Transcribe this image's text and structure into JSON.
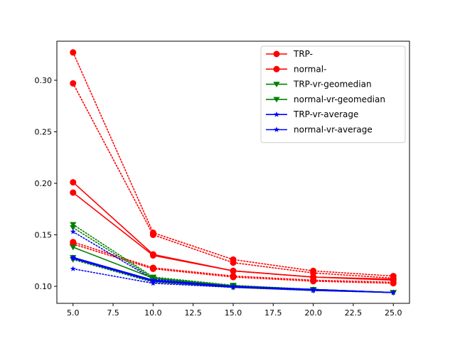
{
  "chart_data": {
    "type": "line",
    "title": "",
    "xlabel": "",
    "ylabel": "",
    "xlim": [
      3.99,
      26.01
    ],
    "ylim": [
      0.0835,
      0.3379
    ],
    "x_ticks": [
      5.0,
      7.5,
      10.0,
      12.5,
      15.0,
      17.5,
      20.0,
      22.5,
      25.0
    ],
    "x_tick_labels": [
      "5.0",
      "7.5",
      "10.0",
      "12.5",
      "15.0",
      "17.5",
      "20.0",
      "22.5",
      "25.0"
    ],
    "y_ticks": [
      0.1,
      0.15,
      0.2,
      0.25,
      0.3
    ],
    "y_tick_labels": [
      "0.10",
      "0.15",
      "0.20",
      "0.25",
      "0.30"
    ],
    "grid": false,
    "legend_position": "top-right",
    "x": [
      5,
      10,
      15,
      20,
      25
    ],
    "series": [
      {
        "name": "TRP-",
        "color": "#ff0000",
        "marker": "circle",
        "style": "solid",
        "values": [
          0.201,
          0.131,
          0.115,
          0.109,
          0.107
        ]
      },
      {
        "name": "normal-",
        "color": "#ff0000",
        "marker": "circle",
        "style": "solid",
        "values": [
          0.191,
          0.13,
          0.115,
          0.109,
          0.106
        ]
      },
      {
        "name": "TRP-vr-geomedian",
        "color": "#008000",
        "marker": "triangle-down",
        "style": "solid",
        "values": [
          0.138,
          0.108,
          0.1005,
          0.097,
          0.094
        ]
      },
      {
        "name": "normal-vr-geomedian",
        "color": "#008000",
        "marker": "triangle-down",
        "style": "solid",
        "values": [
          0.128,
          0.106,
          0.1,
          0.097,
          0.094
        ]
      },
      {
        "name": "TRP-vr-average",
        "color": "#0000ff",
        "marker": "star",
        "style": "solid",
        "values": [
          0.128,
          0.106,
          0.1,
          0.097,
          0.094
        ]
      },
      {
        "name": "normal-vr-average",
        "color": "#0000ff",
        "marker": "star",
        "style": "solid",
        "values": [
          0.127,
          0.105,
          0.0995,
          0.0965,
          0.094
        ]
      }
    ],
    "unlabeled_series": [
      {
        "color": "#ff0000",
        "marker": "circle",
        "style": "dotted",
        "values": [
          0.327,
          0.152,
          0.126,
          0.115,
          0.11
        ]
      },
      {
        "color": "#ff0000",
        "marker": "circle",
        "style": "dotted",
        "values": [
          0.297,
          0.15,
          0.123,
          0.113,
          0.108
        ]
      },
      {
        "color": "#ff0000",
        "marker": "circle",
        "style": "dotted",
        "values": [
          0.143,
          0.118,
          0.11,
          0.106,
          0.104
        ]
      },
      {
        "color": "#ff0000",
        "marker": "circle",
        "style": "dotted",
        "values": [
          0.141,
          0.117,
          0.109,
          0.105,
          0.103
        ]
      },
      {
        "color": "#008000",
        "marker": "triangle-down",
        "style": "dotted",
        "values": [
          0.16,
          0.109,
          0.101,
          0.097,
          0.094
        ]
      },
      {
        "color": "#008000",
        "marker": "triangle-down",
        "style": "dotted",
        "values": [
          0.157,
          0.108,
          0.1,
          0.097,
          0.094
        ]
      },
      {
        "color": "#008000",
        "marker": "triangle-down",
        "style": "dotted",
        "values": [
          0.126,
          0.104,
          0.099,
          0.096,
          0.094
        ]
      },
      {
        "color": "#0000ff",
        "marker": "star",
        "style": "dotted",
        "values": [
          0.153,
          0.107,
          0.1,
          0.097,
          0.094
        ]
      },
      {
        "color": "#0000ff",
        "marker": "star",
        "style": "dotted",
        "values": [
          0.117,
          0.103,
          0.099,
          0.096,
          0.094
        ]
      }
    ]
  }
}
